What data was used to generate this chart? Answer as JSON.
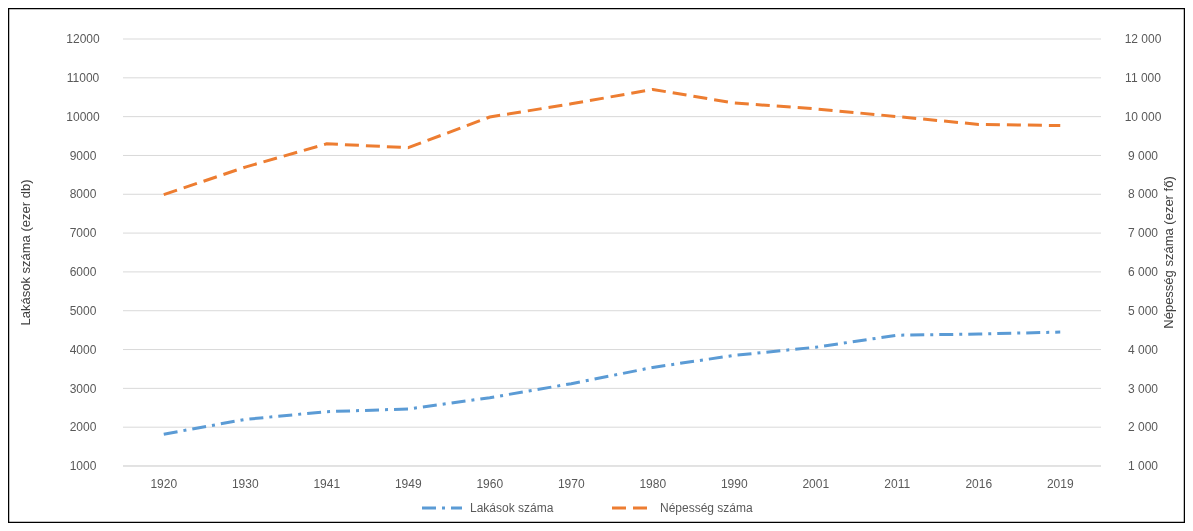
{
  "chart_data": {
    "type": "line",
    "categories": [
      "1920",
      "1930",
      "1941",
      "1949",
      "1960",
      "1970",
      "1980",
      "1990",
      "2001",
      "2011",
      "2016",
      "2019"
    ],
    "series": [
      {
        "name": "Lakások száma",
        "color": "#5b9bd5",
        "line_style": "dashdot",
        "values": [
          1820,
          2200,
          2400,
          2470,
          2760,
          3120,
          3540,
          3850,
          4060,
          4370,
          4400,
          4450
        ]
      },
      {
        "name": "Népesség száma",
        "color": "#ed7d31",
        "line_style": "dashed",
        "values": [
          7990,
          8700,
          9300,
          9200,
          9990,
          10330,
          10700,
          10350,
          10200,
          10000,
          9800,
          9770
        ]
      }
    ],
    "ylabel": "Lakások száma (ezer db)",
    "y2label": "Népesség száma (ezer fő)",
    "ylim": [
      1000,
      12000
    ],
    "yticks": [
      1000,
      2000,
      3000,
      4000,
      5000,
      6000,
      7000,
      8000,
      9000,
      10000,
      11000,
      12000
    ],
    "y2lim": [
      1000,
      12000
    ],
    "y2ticks": [
      {
        "value": 1000,
        "label": "1 000"
      },
      {
        "value": 2000,
        "label": "2 000"
      },
      {
        "value": 3000,
        "label": "3 000"
      },
      {
        "value": 4000,
        "label": "4 000"
      },
      {
        "value": 5000,
        "label": "5 000"
      },
      {
        "value": 6000,
        "label": "6 000"
      },
      {
        "value": 7000,
        "label": "7 000"
      },
      {
        "value": 8000,
        "label": "8 000"
      },
      {
        "value": 9000,
        "label": "9 000"
      },
      {
        "value": 10000,
        "label": "10 000"
      },
      {
        "value": 11000,
        "label": "11 000"
      },
      {
        "value": 12000,
        "label": "12 000"
      }
    ],
    "grid": "y",
    "legend": "bottom"
  }
}
